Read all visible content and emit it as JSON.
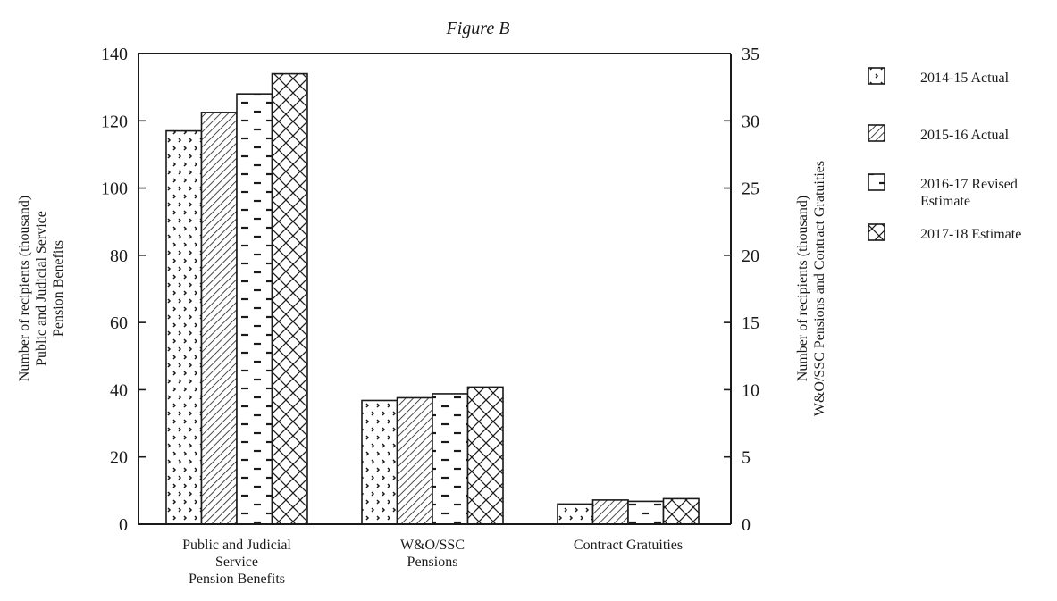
{
  "chart_data": {
    "type": "bar",
    "title": "Figure B",
    "categories": [
      [
        "Public and Judicial",
        "Service",
        "Pension Benefits"
      ],
      [
        "W&O/SSC",
        "Pensions"
      ],
      [
        "Contract Gratuities"
      ]
    ],
    "series": [
      {
        "name": "2014-15 Actual",
        "pattern": "dots",
        "values": [
          117,
          9.2,
          1.5
        ]
      },
      {
        "name": "2015-16 Actual",
        "pattern": "diagonal",
        "values": [
          122.5,
          9.4,
          1.8
        ]
      },
      {
        "name": "2016-17 Revised Estimate",
        "pattern": "dashes",
        "values": [
          128,
          9.7,
          1.7
        ]
      },
      {
        "name": "2017-18 Estimate",
        "pattern": "crosshatch",
        "values": [
          134,
          10.2,
          1.9
        ]
      }
    ],
    "left_axis": {
      "label_lines": [
        "Number of recipients (thousand)",
        "Public and Judicial Service",
        "Pension Benefits"
      ],
      "ylim": [
        0,
        140
      ],
      "ticks": [
        0,
        20,
        40,
        60,
        80,
        100,
        120,
        140
      ],
      "applies_to_category_index": [
        0
      ]
    },
    "right_axis": {
      "label_lines": [
        "Number of recipients (thousand)",
        "W&O/SSC Pensions and Contract Gratuities"
      ],
      "ylim": [
        0,
        35
      ],
      "ticks": [
        0,
        5,
        10,
        15,
        20,
        25,
        30,
        35
      ],
      "applies_to_category_index": [
        1,
        2
      ]
    },
    "legend_entries": [
      [
        "2014-15 Actual"
      ],
      [
        "2015-16 Actual"
      ],
      [
        "2016-17 Revised",
        "Estimate"
      ],
      [
        "2017-18 Estimate"
      ]
    ],
    "legend_position": "right",
    "grid": false,
    "colors": {
      "ink": "#1a1a1a",
      "background": "#ffffff"
    }
  }
}
